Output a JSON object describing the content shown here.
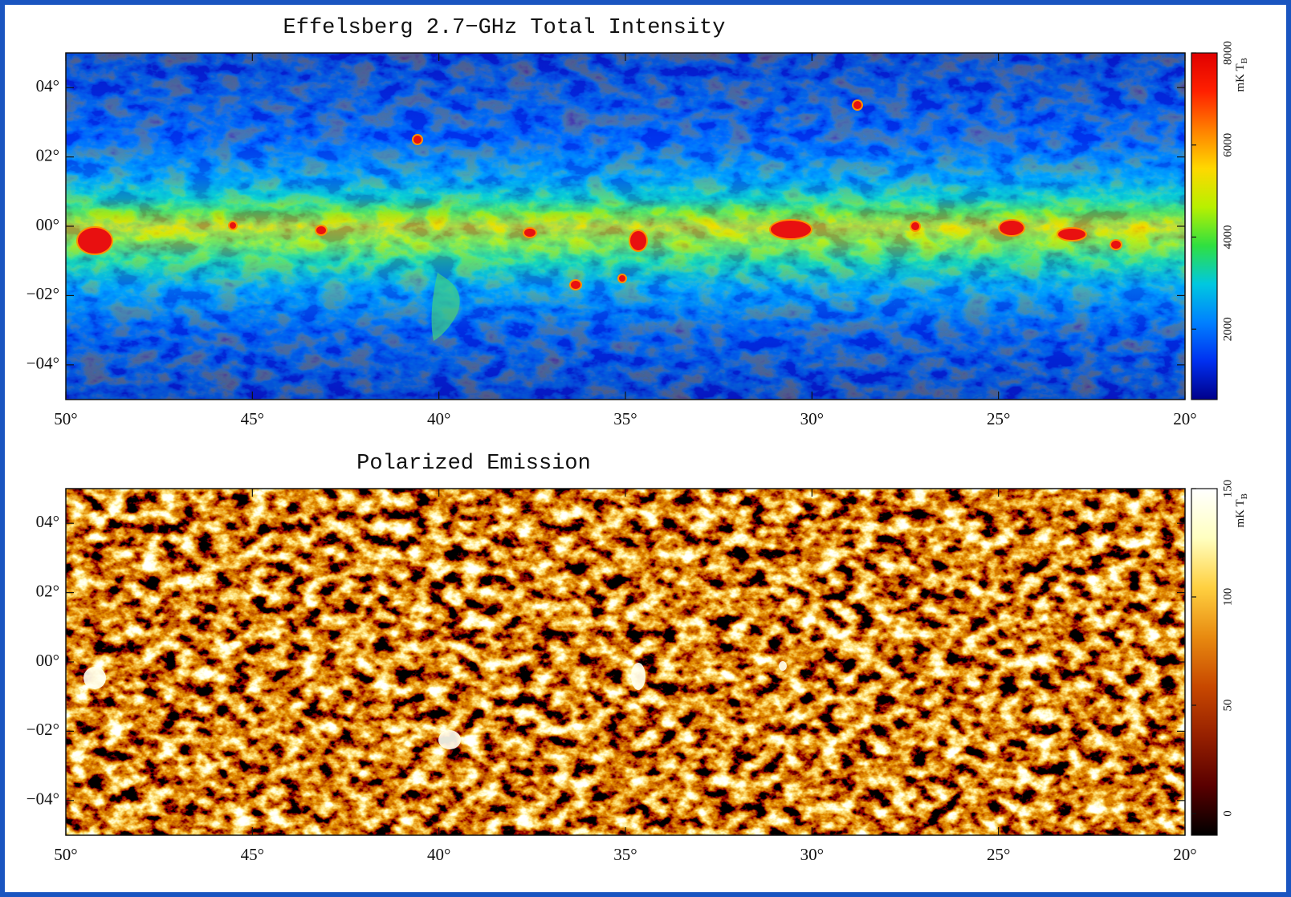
{
  "chart_data": [
    {
      "type": "heatmap",
      "title": "Effelsberg 2.7−GHz Total Intensity",
      "xlim": [
        50,
        20
      ],
      "ylim": [
        -5,
        5
      ],
      "xticks": [
        {
          "value": 50,
          "label": "50°"
        },
        {
          "value": 45,
          "label": "45°"
        },
        {
          "value": 40,
          "label": "40°"
        },
        {
          "value": 35,
          "label": "35°"
        },
        {
          "value": 30,
          "label": "30°"
        },
        {
          "value": 25,
          "label": "25°"
        },
        {
          "value": 20,
          "label": "20°"
        }
      ],
      "yticks": [
        {
          "value": 4,
          "label": "04°"
        },
        {
          "value": 2,
          "label": "02°"
        },
        {
          "value": 0,
          "label": "00°"
        },
        {
          "value": -2,
          "label": "−02°"
        },
        {
          "value": -4,
          "label": "−04°"
        }
      ],
      "colorbar_unit": "mK T",
      "colorbar_unit_sub": "B",
      "clim": [
        470,
        8000
      ],
      "cticks": [
        2000,
        4000,
        6000,
        8000
      ],
      "colormap": [
        "#00008a",
        "#0030f0",
        "#0080ff",
        "#00c8e0",
        "#30e040",
        "#b8f000",
        "#ffd800",
        "#ff8000",
        "#ff2000",
        "#e00000"
      ]
    },
    {
      "type": "heatmap",
      "title": "Polarized Emission",
      "xlim": [
        50,
        20
      ],
      "ylim": [
        -5,
        5
      ],
      "xticks": [
        {
          "value": 50,
          "label": "50°"
        },
        {
          "value": 45,
          "label": "45°"
        },
        {
          "value": 40,
          "label": "40°"
        },
        {
          "value": 35,
          "label": "35°"
        },
        {
          "value": 30,
          "label": "30°"
        },
        {
          "value": 25,
          "label": "25°"
        },
        {
          "value": 20,
          "label": "20°"
        }
      ],
      "yticks": [
        {
          "value": 4,
          "label": "04°"
        },
        {
          "value": 2,
          "label": "02°"
        },
        {
          "value": 0,
          "label": "00°"
        },
        {
          "value": -2,
          "label": "−02°"
        },
        {
          "value": -4,
          "label": "−04°"
        }
      ],
      "colorbar_unit": "mK T",
      "colorbar_unit_sub": "B",
      "clim": [
        -10,
        150
      ],
      "cticks": [
        0,
        50,
        100,
        150
      ],
      "colormap": [
        "#000000",
        "#5a0000",
        "#962000",
        "#c84800",
        "#e88a10",
        "#ffd040",
        "#ffffc0",
        "#ffffff"
      ]
    }
  ]
}
